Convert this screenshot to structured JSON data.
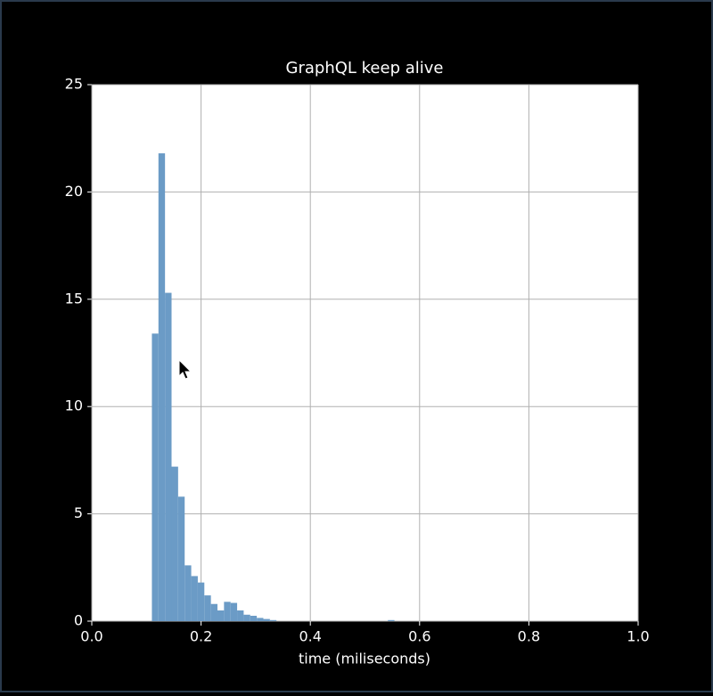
{
  "chart_data": {
    "type": "histogram",
    "title": "GraphQL keep alive",
    "xlabel": "time (miliseconds)",
    "bins": [
      0.11,
      0.122,
      0.134,
      0.146,
      0.158,
      0.17,
      0.182,
      0.194,
      0.206,
      0.218,
      0.23,
      0.242,
      0.254,
      0.266,
      0.278,
      0.29,
      0.302,
      0.314,
      0.326,
      0.338,
      0.35,
      0.362,
      0.374,
      0.386,
      0.398,
      0.41,
      0.422,
      0.434,
      0.446,
      0.458,
      0.47,
      0.482,
      0.494,
      0.506,
      0.518,
      0.53,
      0.542,
      0.554
    ],
    "values": [
      13.4,
      21.8,
      15.3,
      7.2,
      5.8,
      2.6,
      2.1,
      1.8,
      1.2,
      0.8,
      0.5,
      0.9,
      0.85,
      0.5,
      0.3,
      0.25,
      0.15,
      0.1,
      0.05,
      0,
      0,
      0,
      0,
      0,
      0,
      0,
      0,
      0,
      0,
      0,
      0,
      0,
      0,
      0,
      0,
      0,
      0.05
    ],
    "color": "#6b9bc6",
    "xlim": [
      0,
      1
    ],
    "xticks": [
      {
        "value": 0,
        "label": "0.0"
      },
      0.2,
      0.4,
      0.6,
      0.8,
      {
        "value": 1,
        "label": "1.0"
      }
    ],
    "ylim": [
      0,
      25
    ],
    "yticks": [
      0,
      5,
      10,
      15,
      20,
      25
    ],
    "grid": true
  }
}
